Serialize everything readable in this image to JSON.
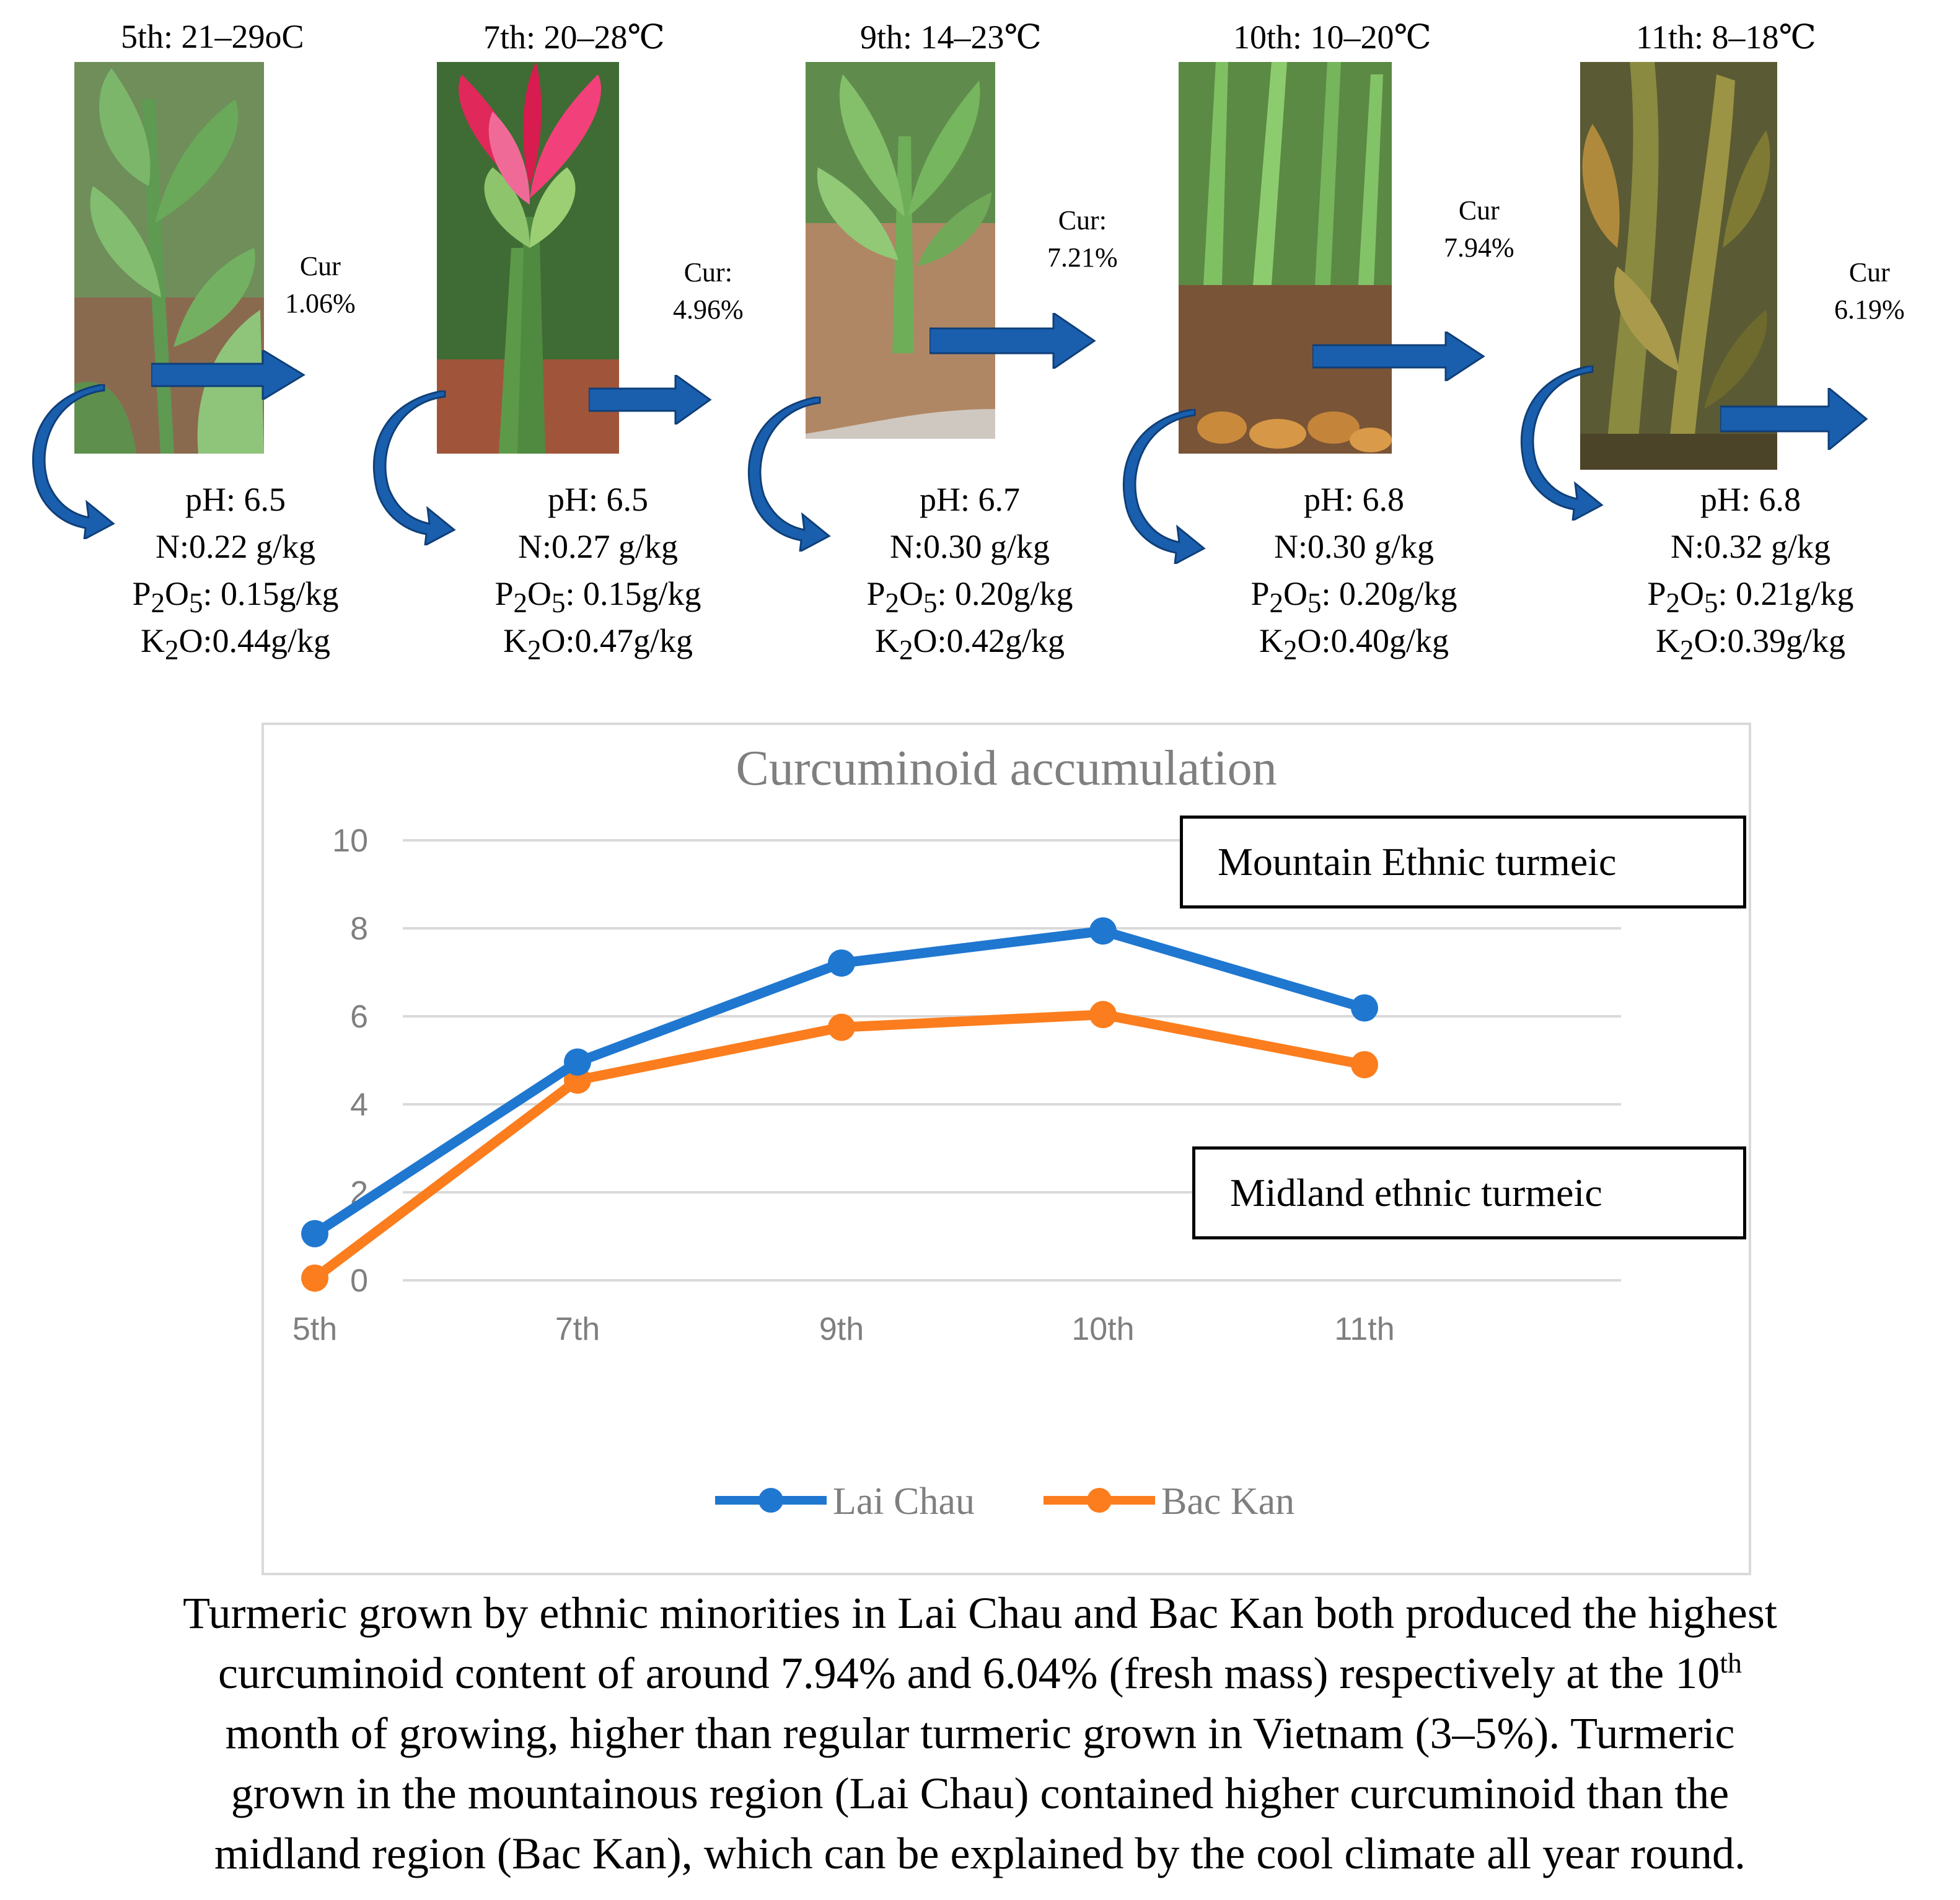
{
  "stages": [
    {
      "title": "5th: 21–29oC",
      "cur_label": "Cur",
      "cur_value": "1.06%",
      "ph": "pH: 6.5",
      "n": "N:0.22 g/kg",
      "p2o5_value": ": 0.15g/kg",
      "k2o_value": ":0.44g/kg"
    },
    {
      "title": "7th: 20–28℃",
      "cur_label": "Cur:",
      "cur_value": "4.96%",
      "ph": "pH: 6.5",
      "n": "N:0.27 g/kg",
      "p2o5_value": ": 0.15g/kg",
      "k2o_value": ":0.47g/kg"
    },
    {
      "title": "9th: 14–23℃",
      "cur_label": "Cur:",
      "cur_value": "7.21%",
      "ph": "pH: 6.7",
      "n": "N:0.30 g/kg",
      "p2o5_value": ": 0.20g/kg",
      "k2o_value": ":0.42g/kg"
    },
    {
      "title": "10th: 10–20℃",
      "cur_label": "Cur",
      "cur_value": "7.94%",
      "ph": "pH: 6.8",
      "n": "N:0.30 g/kg",
      "p2o5_value": ": 0.20g/kg",
      "k2o_value": ":0.40g/kg"
    },
    {
      "title": "11th: 8–18℃",
      "cur_label": "Cur",
      "cur_value": "6.19%",
      "ph": "pH: 6.8",
      "n": "N:0.32 g/kg",
      "p2o5_value": ": 0.21g/kg",
      "k2o_value": ":0.39g/kg"
    }
  ],
  "formula": {
    "p": "P",
    "p_sub1": "2",
    "o": "O",
    "p_sub2": "5",
    "k": "K",
    "k_sub": "2",
    "k_o": "O"
  },
  "colors": {
    "lai_chau": "#1f77d0",
    "bac_kan": "#fb7d1e",
    "arrow": "#1a5fae",
    "grid": "#d9d9d9"
  },
  "chart_data": {
    "type": "line",
    "title": "Curcuminoid accumulation",
    "categories": [
      "5th",
      "7th",
      "9th",
      "10th",
      "11th"
    ],
    "series": [
      {
        "name": "Lai Chau",
        "values": [
          1.06,
          4.96,
          7.21,
          7.94,
          6.19
        ]
      },
      {
        "name": "Bac Kan",
        "values": [
          0.05,
          4.55,
          5.75,
          6.04,
          4.9
        ]
      }
    ],
    "ylim": [
      0,
      10
    ],
    "yticks": [
      "0",
      "2",
      "4",
      "6",
      "8",
      "10"
    ],
    "grid": true,
    "legend_position": "bottom",
    "annotations": [
      "Mountain Ethnic turmeic",
      "Midland ethnic turmeic"
    ]
  },
  "caption": {
    "line1": "Turmeric grown by ethnic minorities in Lai Chau and Bac Kan both produced the highest",
    "line2a": "curcuminoid content of around 7.94% and 6.04% (fresh mass) respectively at the 10",
    "line2_sup": "th",
    "line3": "month of growing, higher than regular turmeric grown in Vietnam (3–5%). Turmeric",
    "line4": "grown in the mountainous region (Lai Chau) contained higher curcuminoid than the",
    "line5": "midland region (Bac Kan), which can be explained by the cool climate all year round."
  }
}
